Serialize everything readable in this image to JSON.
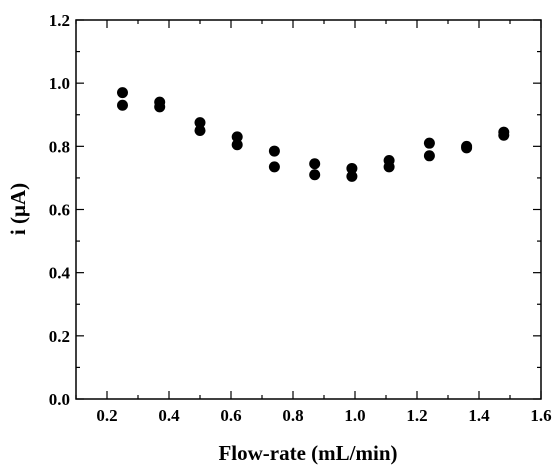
{
  "chart_data": {
    "type": "scatter",
    "title": "",
    "xlabel": "Flow-rate (mL/min)",
    "ylabel": "i (μA)",
    "xlim": [
      0.1,
      1.6
    ],
    "ylim": [
      0.0,
      1.2
    ],
    "xticks": [
      0.2,
      0.4,
      0.6,
      0.8,
      1.0,
      1.2,
      1.4,
      1.6
    ],
    "xtick_labels": [
      "0.2",
      "0.4",
      "0.6",
      "0.8",
      "1.0",
      "1.2",
      "1.4",
      "1.6"
    ],
    "yticks": [
      0.0,
      0.2,
      0.4,
      0.6,
      0.8,
      1.0,
      1.2
    ],
    "ytick_labels": [
      "0.0",
      "0.2",
      "0.4",
      "0.6",
      "0.8",
      "1.0",
      "1.2"
    ],
    "grid": false,
    "marker_color": "#000000",
    "series": [
      {
        "x": [
          0.25,
          0.25,
          0.37,
          0.37,
          0.5,
          0.5,
          0.62,
          0.62,
          0.74,
          0.74,
          0.87,
          0.87,
          0.99,
          0.99,
          1.11,
          1.11,
          1.24,
          1.24,
          1.36,
          1.36,
          1.48,
          1.48
        ],
        "y": [
          0.97,
          0.93,
          0.94,
          0.925,
          0.875,
          0.85,
          0.83,
          0.805,
          0.785,
          0.735,
          0.745,
          0.71,
          0.73,
          0.705,
          0.755,
          0.735,
          0.81,
          0.77,
          0.8,
          0.795,
          0.845,
          0.835
        ]
      }
    ]
  }
}
